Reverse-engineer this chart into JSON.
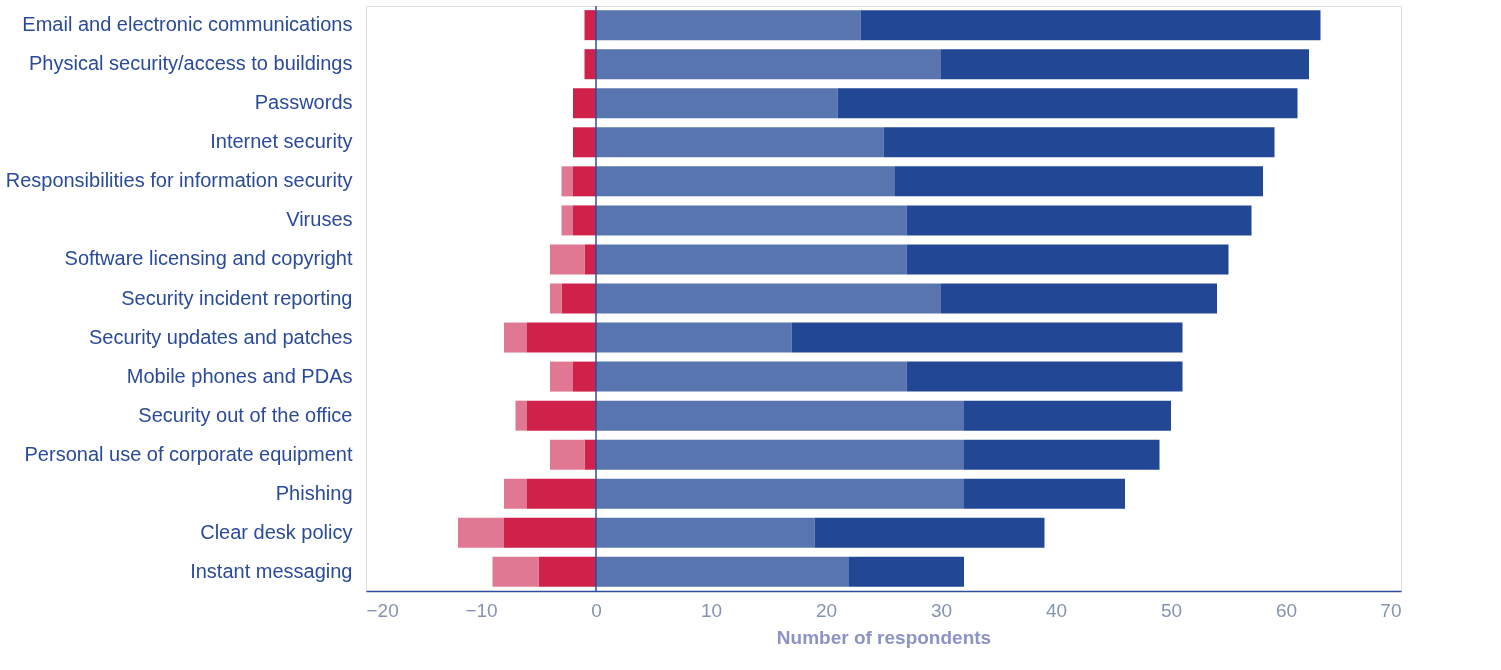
{
  "chart_data": {
    "type": "bar",
    "orientation": "horizontal",
    "stacked": true,
    "categories": [
      "Email and electronic communications",
      "Physical security/access to buildings",
      "Passwords",
      "Internet security",
      "Responsibilities for information security",
      "Viruses",
      "Software licensing and copyright",
      "Security incident reporting",
      "Security updates and patches",
      "Mobile phones and PDAs",
      "Security out of the office",
      "Personal use of corporate equipment",
      "Phishing",
      "Clear desk policy",
      "Instant messaging"
    ],
    "series": [
      {
        "color": "#cf2149",
        "values": [
          -1,
          -1,
          -2,
          -2,
          -2,
          -2,
          -1,
          -3,
          -6,
          -2,
          -6,
          -1,
          -6,
          -8,
          -5
        ]
      },
      {
        "color": "#e07893",
        "values": [
          null,
          null,
          null,
          null,
          -1,
          -1,
          -3,
          -1,
          -2,
          -2,
          -1,
          -3,
          -2,
          -4,
          -4
        ]
      },
      {
        "color": "#5975b0",
        "values": [
          23,
          30,
          21,
          25,
          26,
          27,
          27,
          30,
          17,
          27,
          32,
          32,
          32,
          19,
          22
        ]
      },
      {
        "color": "#224794",
        "values": [
          40,
          32,
          40,
          34,
          32,
          30,
          28,
          24,
          34,
          24,
          18,
          17,
          14,
          20,
          10
        ]
      }
    ],
    "xlabel": "Number of respondents",
    "xlim": [
      -20,
      70
    ],
    "xticks": [
      -20,
      -10,
      0,
      10,
      20,
      30,
      40,
      50,
      60,
      70
    ],
    "ref_lines": [
      {
        "axis": "x",
        "value": 0,
        "color": "#2d4d9c"
      }
    ],
    "grid": false,
    "legend": false
  }
}
